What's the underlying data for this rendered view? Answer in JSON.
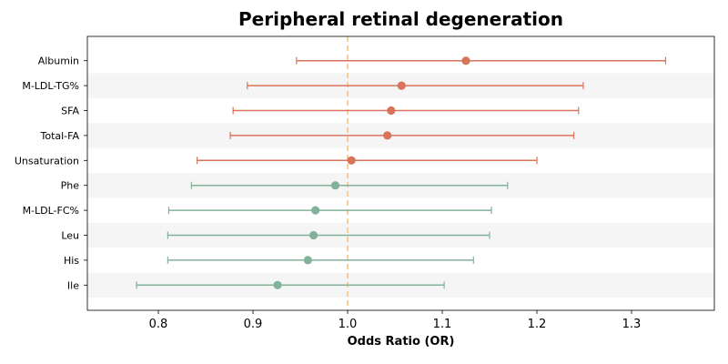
{
  "chart_data": {
    "type": "forest",
    "title": "Peripheral retinal degeneration",
    "xlabel": "Odds Ratio (OR)",
    "ylabel": "",
    "xlim": [
      0.725,
      1.3875
    ],
    "xticks": [
      0.8,
      0.9,
      1.0,
      1.1,
      1.2,
      1.3
    ],
    "xtick_labels": [
      "0.8",
      "0.9",
      "1.0",
      "1.1",
      "1.2",
      "1.3"
    ],
    "reference_line": 1.0,
    "grid": false,
    "band_color": "#f5f5f5",
    "reference_color": "#f4c27f",
    "risk_color": "#d9735a",
    "protective_color": "#82b29a",
    "rows": [
      {
        "label": "Albumin",
        "or": 1.125,
        "lower": 0.946,
        "upper": 1.336
      },
      {
        "label": "M-LDL-TG%",
        "or": 1.057,
        "lower": 0.894,
        "upper": 1.249
      },
      {
        "label": "SFA",
        "or": 1.046,
        "lower": 0.879,
        "upper": 1.244
      },
      {
        "label": "Total-FA",
        "or": 1.042,
        "lower": 0.876,
        "upper": 1.239
      },
      {
        "label": "Unsaturation",
        "or": 1.004,
        "lower": 0.841,
        "upper": 1.2
      },
      {
        "label": "Phe",
        "or": 0.987,
        "lower": 0.835,
        "upper": 1.169
      },
      {
        "label": "M-LDL-FC%",
        "or": 0.966,
        "lower": 0.811,
        "upper": 1.152
      },
      {
        "label": "Leu",
        "or": 0.964,
        "lower": 0.81,
        "upper": 1.15
      },
      {
        "label": "His",
        "or": 0.958,
        "lower": 0.81,
        "upper": 1.133
      },
      {
        "label": "Ile",
        "or": 0.926,
        "lower": 0.777,
        "upper": 1.102
      }
    ]
  }
}
